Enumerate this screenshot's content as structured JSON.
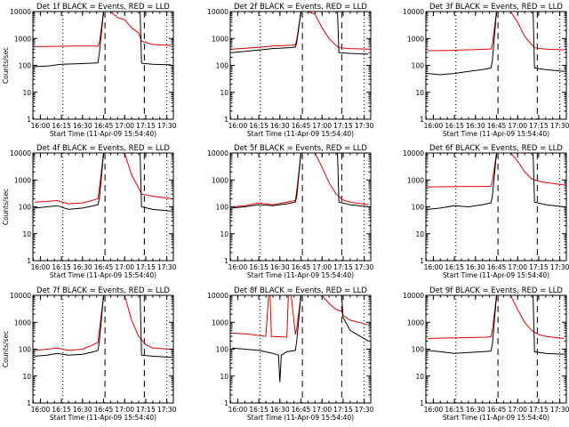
{
  "colors": {
    "events": "#000000",
    "lld": "#e00000",
    "axis": "#000000",
    "background": "#ffffff"
  },
  "chart_data": [
    {
      "type": "line",
      "title": "Det 1f BLACK = Events, RED = LLD",
      "xlabel": "Start Time (11-Apr-09 15:54:40)",
      "ylabel": "Counts/sec",
      "xlim": [
        "15:54:40",
        "17:34:40"
      ],
      "ylim": [
        1,
        10000
      ],
      "yscale": "log",
      "xticks": [
        "16:00",
        "16:15",
        "16:30",
        "16:45",
        "17:00",
        "17:15",
        "17:30"
      ],
      "yticks": [
        "1",
        "10",
        "100",
        "1000",
        "10000"
      ],
      "dotted_lines": [
        "16:16",
        "17:30"
      ],
      "dashed_lines": [
        "16:46",
        "17:14"
      ],
      "series": [
        {
          "color": "#e00000",
          "x": [
            "15:56",
            "16:10",
            "16:25",
            "16:38",
            "16:41",
            "16:42",
            "16:45",
            "16:50",
            "16:55",
            "17:00",
            "17:05",
            "17:10",
            "17:12",
            "17:20",
            "17:33"
          ],
          "values": [
            500,
            510,
            520,
            520,
            520,
            700,
            10000,
            10000,
            6000,
            5000,
            2500,
            1600,
            800,
            600,
            550
          ]
        },
        {
          "color": "#000000",
          "x": [
            "15:56",
            "16:05",
            "16:15",
            "16:25",
            "16:35",
            "16:41",
            "16:42",
            "16:45",
            "16:50",
            "16:55",
            "17:00",
            "17:05",
            "17:11",
            "17:12",
            "17:20",
            "17:33"
          ],
          "values": [
            90,
            95,
            110,
            115,
            120,
            125,
            300,
            10000,
            10000,
            10000,
            10000,
            10000,
            10000,
            120,
            110,
            105
          ]
        }
      ]
    },
    {
      "type": "line",
      "title": "Det 2f BLACK = Events, RED = LLD",
      "xlabel": "Start Time (11-Apr-09 15:54:40)",
      "ylabel": "",
      "xlim": [
        "15:54:40",
        "17:34:40"
      ],
      "ylim": [
        1,
        10000
      ],
      "yscale": "log",
      "xticks": [
        "16:00",
        "16:15",
        "16:30",
        "16:45",
        "17:00",
        "17:15",
        "17:30"
      ],
      "yticks": [
        "1",
        "10",
        "100",
        "1000",
        "10000"
      ],
      "dotted_lines": [
        "16:16",
        "17:30"
      ],
      "dashed_lines": [
        "16:46",
        "17:14"
      ],
      "series": [
        {
          "color": "#e00000",
          "x": [
            "15:56",
            "16:10",
            "16:25",
            "16:38",
            "16:41",
            "16:42",
            "16:45",
            "16:50",
            "16:55",
            "17:00",
            "17:05",
            "17:10",
            "17:12",
            "17:20",
            "17:33"
          ],
          "values": [
            400,
            450,
            520,
            560,
            580,
            900,
            10000,
            10000,
            8000,
            2500,
            1000,
            550,
            450,
            420,
            400
          ]
        },
        {
          "color": "#000000",
          "x": [
            "15:56",
            "16:10",
            "16:25",
            "16:38",
            "16:41",
            "16:42",
            "16:45",
            "16:50",
            "16:55",
            "17:00",
            "17:05",
            "17:11",
            "17:12",
            "17:20",
            "17:33"
          ],
          "values": [
            300,
            350,
            420,
            460,
            480,
            700,
            10000,
            10000,
            10000,
            10000,
            10000,
            10000,
            300,
            280,
            260
          ]
        }
      ]
    },
    {
      "type": "line",
      "title": "Det 3f BLACK = Events, RED = LLD",
      "xlabel": "Start Time (11-Apr-09 15:54:40)",
      "ylabel": "",
      "xlim": [
        "15:54:40",
        "17:34:40"
      ],
      "ylim": [
        1,
        10000
      ],
      "yscale": "log",
      "xticks": [
        "16:00",
        "16:15",
        "16:30",
        "16:45",
        "17:00",
        "17:15",
        "17:30"
      ],
      "yticks": [
        "1",
        "10",
        "100",
        "1000",
        "10000"
      ],
      "dotted_lines": [
        "16:16",
        "17:30"
      ],
      "dashed_lines": [
        "16:46",
        "17:14"
      ],
      "series": [
        {
          "color": "#e00000",
          "x": [
            "15:56",
            "16:10",
            "16:25",
            "16:38",
            "16:41",
            "16:42",
            "16:45",
            "16:50",
            "16:55",
            "17:00",
            "17:05",
            "17:10",
            "17:12",
            "17:20",
            "17:33"
          ],
          "values": [
            350,
            360,
            380,
            400,
            410,
            600,
            10000,
            10000,
            10000,
            4000,
            1200,
            600,
            450,
            400,
            380
          ]
        },
        {
          "color": "#000000",
          "x": [
            "15:56",
            "16:05",
            "16:15",
            "16:25",
            "16:35",
            "16:41",
            "16:42",
            "16:45",
            "16:50",
            "16:55",
            "17:00",
            "17:05",
            "17:11",
            "17:12",
            "17:20",
            "17:33"
          ],
          "values": [
            50,
            45,
            50,
            60,
            70,
            80,
            150,
            10000,
            10000,
            10000,
            10000,
            10000,
            10000,
            80,
            70,
            60
          ]
        }
      ]
    },
    {
      "type": "line",
      "title": "Det 4f BLACK = Events, RED = LLD",
      "xlabel": "Start Time (11-Apr-09 15:54:40)",
      "ylabel": "Counts/sec",
      "xlim": [
        "15:54:40",
        "17:34:40"
      ],
      "ylim": [
        1,
        10000
      ],
      "yscale": "log",
      "xticks": [
        "16:00",
        "16:15",
        "16:30",
        "16:45",
        "17:00",
        "17:15",
        "17:30"
      ],
      "yticks": [
        "1",
        "10",
        "100",
        "1000",
        "10000"
      ],
      "dotted_lines": [
        "16:16",
        "17:30"
      ],
      "dashed_lines": [
        "16:46",
        "17:14"
      ],
      "series": [
        {
          "color": "#e00000",
          "x": [
            "15:56",
            "16:05",
            "16:12",
            "16:20",
            "16:30",
            "16:38",
            "16:41",
            "16:42",
            "16:45",
            "16:50",
            "16:55",
            "17:00",
            "17:05",
            "17:10",
            "17:12",
            "17:20",
            "17:33"
          ],
          "values": [
            150,
            160,
            170,
            130,
            140,
            180,
            200,
            500,
            10000,
            10000,
            10000,
            10000,
            1500,
            500,
            300,
            250,
            200
          ]
        },
        {
          "color": "#000000",
          "x": [
            "15:56",
            "16:05",
            "16:12",
            "16:20",
            "16:30",
            "16:38",
            "16:41",
            "16:42",
            "16:45",
            "16:50",
            "16:55",
            "17:00",
            "17:05",
            "17:11",
            "17:12",
            "17:20",
            "17:33"
          ],
          "values": [
            90,
            100,
            110,
            80,
            90,
            110,
            120,
            200,
            10000,
            10000,
            10000,
            10000,
            10000,
            10000,
            100,
            80,
            70
          ]
        }
      ]
    },
    {
      "type": "line",
      "title": "Det 5f BLACK = Events, RED = LLD",
      "xlabel": "Start Time (11-Apr-09 15:54:40)",
      "ylabel": "",
      "xlim": [
        "15:54:40",
        "17:34:40"
      ],
      "ylim": [
        1,
        10000
      ],
      "yscale": "log",
      "xticks": [
        "16:00",
        "16:15",
        "16:30",
        "16:45",
        "17:00",
        "17:15",
        "17:30"
      ],
      "yticks": [
        "1",
        "10",
        "100",
        "1000",
        "10000"
      ],
      "dotted_lines": [
        "16:16",
        "17:30"
      ],
      "dashed_lines": [
        "16:46",
        "17:14"
      ],
      "series": [
        {
          "color": "#e00000",
          "x": [
            "15:56",
            "16:05",
            "16:15",
            "16:25",
            "16:35",
            "16:41",
            "16:42",
            "16:45",
            "16:50",
            "16:55",
            "17:00",
            "17:05",
            "17:10",
            "17:15",
            "17:20",
            "17:33"
          ],
          "values": [
            100,
            110,
            140,
            120,
            150,
            170,
            400,
            10000,
            10000,
            10000,
            3000,
            800,
            300,
            180,
            150,
            120
          ]
        },
        {
          "color": "#000000",
          "x": [
            "15:56",
            "16:05",
            "16:15",
            "16:25",
            "16:35",
            "16:41",
            "16:42",
            "16:45",
            "16:50",
            "16:55",
            "17:00",
            "17:05",
            "17:11",
            "17:12",
            "17:20",
            "17:33"
          ],
          "values": [
            90,
            100,
            120,
            110,
            130,
            150,
            250,
            10000,
            10000,
            10000,
            10000,
            10000,
            10000,
            150,
            120,
            100
          ]
        }
      ]
    },
    {
      "type": "line",
      "title": "Det 6f BLACK = Events, RED = LLD",
      "xlabel": "Start Time (11-Apr-09 15:54:40)",
      "ylabel": "",
      "xlim": [
        "15:54:40",
        "17:34:40"
      ],
      "ylim": [
        1,
        10000
      ],
      "yscale": "log",
      "xticks": [
        "16:00",
        "16:15",
        "16:30",
        "16:45",
        "17:00",
        "17:15",
        "17:30"
      ],
      "yticks": [
        "1",
        "10",
        "100",
        "1000",
        "10000"
      ],
      "dotted_lines": [
        "16:16",
        "17:30"
      ],
      "dashed_lines": [
        "16:46",
        "17:14"
      ],
      "series": [
        {
          "color": "#e00000",
          "x": [
            "15:56",
            "16:10",
            "16:25",
            "16:38",
            "16:41",
            "16:42",
            "16:45",
            "16:50",
            "16:55",
            "17:00",
            "17:05",
            "17:10",
            "17:15",
            "17:20",
            "17:33"
          ],
          "values": [
            550,
            560,
            570,
            570,
            580,
            900,
            10000,
            10000,
            10000,
            5000,
            2000,
            1100,
            900,
            800,
            650
          ]
        },
        {
          "color": "#000000",
          "x": [
            "15:56",
            "16:05",
            "16:15",
            "16:25",
            "16:35",
            "16:41",
            "16:42",
            "16:45",
            "16:50",
            "16:55",
            "17:00",
            "17:05",
            "17:11",
            "17:12",
            "17:20",
            "17:33"
          ],
          "values": [
            80,
            90,
            110,
            100,
            120,
            140,
            250,
            10000,
            10000,
            10000,
            10000,
            10000,
            10000,
            150,
            120,
            100
          ]
        }
      ]
    },
    {
      "type": "line",
      "title": "Det 7f BLACK = Events, RED = LLD",
      "xlabel": "Start Time (11-Apr-09 15:54:40)",
      "ylabel": "Counts/sec",
      "xlim": [
        "15:54:40",
        "17:34:40"
      ],
      "ylim": [
        1,
        10000
      ],
      "yscale": "log",
      "xticks": [
        "16:00",
        "16:15",
        "16:30",
        "16:45",
        "17:00",
        "17:15",
        "17:30"
      ],
      "yticks": [
        "1",
        "10",
        "100",
        "1000",
        "10000"
      ],
      "dotted_lines": [
        "16:16",
        "17:30"
      ],
      "dashed_lines": [
        "16:46",
        "17:14"
      ],
      "series": [
        {
          "color": "#e00000",
          "x": [
            "15:56",
            "16:05",
            "16:12",
            "16:20",
            "16:30",
            "16:38",
            "16:41",
            "16:42",
            "16:45",
            "16:50",
            "16:55",
            "17:00",
            "17:05",
            "17:10",
            "17:15",
            "17:20",
            "17:33"
          ],
          "values": [
            90,
            100,
            110,
            90,
            100,
            150,
            180,
            500,
            10000,
            10000,
            10000,
            10000,
            1200,
            300,
            150,
            110,
            100
          ]
        },
        {
          "color": "#000000",
          "x": [
            "15:56",
            "16:05",
            "16:12",
            "16:20",
            "16:30",
            "16:38",
            "16:41",
            "16:42",
            "16:45",
            "16:50",
            "16:55",
            "17:00",
            "17:05",
            "17:11",
            "17:12",
            "17:20",
            "17:33"
          ],
          "values": [
            55,
            60,
            70,
            60,
            65,
            80,
            90,
            200,
            10000,
            10000,
            10000,
            10000,
            10000,
            10000,
            60,
            55,
            50
          ]
        }
      ]
    },
    {
      "type": "line",
      "title": "Det 8f BLACK = Events, RED = LLD",
      "xlabel": "Start Time (11-Apr-09 15:54:40)",
      "ylabel": "",
      "xlim": [
        "15:54:40",
        "17:34:40"
      ],
      "ylim": [
        1,
        10000
      ],
      "yscale": "log",
      "xticks": [
        "16:00",
        "16:15",
        "16:30",
        "16:45",
        "17:00",
        "17:15",
        "17:30"
      ],
      "yticks": [
        "1",
        "10",
        "100",
        "1000",
        "10000"
      ],
      "dotted_lines": [
        "16:16",
        "17:30"
      ],
      "dashed_lines": [
        "16:46",
        "17:14"
      ],
      "series": [
        {
          "color": "#e00000",
          "x": [
            "15:56",
            "16:10",
            "16:20",
            "16:22",
            "16:23",
            "16:24",
            "16:35",
            "16:36",
            "16:38",
            "16:41",
            "16:42",
            "16:45",
            "16:50",
            "16:55",
            "17:00",
            "17:05",
            "17:10",
            "17:14",
            "17:15",
            "17:20",
            "17:33"
          ],
          "values": [
            400,
            350,
            300,
            10000,
            10000,
            300,
            280,
            10000,
            10000,
            350,
            600,
            10000,
            10000,
            10000,
            10000,
            5000,
            3000,
            2500,
            1800,
            1200,
            800
          ]
        },
        {
          "color": "#000000",
          "x": [
            "15:56",
            "16:05",
            "16:15",
            "16:25",
            "16:29",
            "16:30",
            "16:31",
            "16:35",
            "16:41",
            "16:42",
            "16:45",
            "16:50",
            "16:55",
            "17:00",
            "17:05",
            "17:14",
            "17:15",
            "17:20",
            "17:33"
          ],
          "values": [
            110,
            100,
            90,
            70,
            60,
            6,
            60,
            80,
            90,
            200,
            10000,
            10000,
            10000,
            10000,
            10000,
            10000,
            1500,
            500,
            200
          ]
        }
      ]
    },
    {
      "type": "line",
      "title": "Det 9f BLACK = Events, RED = LLD",
      "xlabel": "Start Time (11-Apr-09 15:54:40)",
      "ylabel": "",
      "xlim": [
        "15:54:40",
        "17:34:40"
      ],
      "ylim": [
        1,
        10000
      ],
      "yscale": "log",
      "xticks": [
        "16:00",
        "16:15",
        "16:30",
        "16:45",
        "17:00",
        "17:15",
        "17:30"
      ],
      "yticks": [
        "1",
        "10",
        "100",
        "1000",
        "10000"
      ],
      "dotted_lines": [
        "16:16",
        "17:30"
      ],
      "dashed_lines": [
        "16:46",
        "17:14"
      ],
      "series": [
        {
          "color": "#e00000",
          "x": [
            "15:56",
            "16:10",
            "16:25",
            "16:38",
            "16:41",
            "16:42",
            "16:45",
            "16:50",
            "16:55",
            "17:00",
            "17:05",
            "17:10",
            "17:15",
            "17:20",
            "17:33"
          ],
          "values": [
            250,
            260,
            270,
            280,
            290,
            500,
            10000,
            10000,
            10000,
            3000,
            1000,
            500,
            350,
            300,
            250
          ]
        },
        {
          "color": "#000000",
          "x": [
            "15:56",
            "16:05",
            "16:15",
            "16:25",
            "16:35",
            "16:41",
            "16:42",
            "16:45",
            "16:50",
            "16:55",
            "17:00",
            "17:05",
            "17:11",
            "17:12",
            "17:20",
            "17:33"
          ],
          "values": [
            90,
            80,
            70,
            75,
            80,
            85,
            150,
            10000,
            10000,
            10000,
            10000,
            10000,
            10000,
            80,
            70,
            65
          ]
        }
      ]
    }
  ]
}
